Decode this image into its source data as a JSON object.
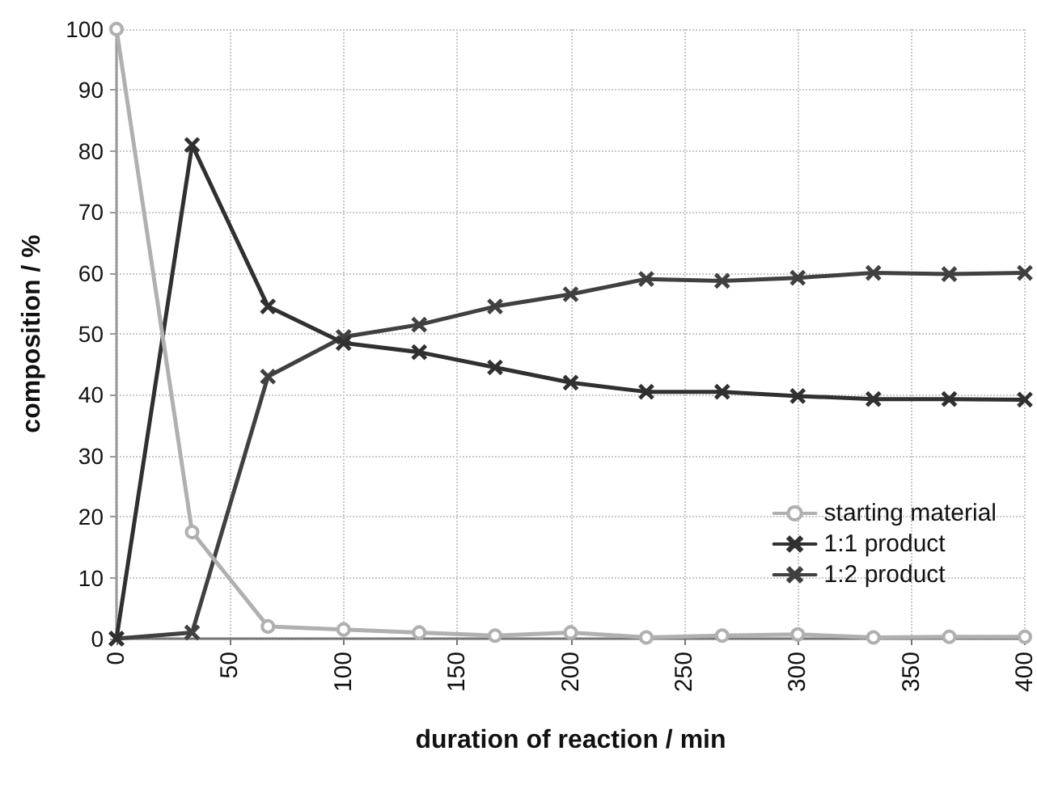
{
  "chart_data": {
    "type": "line",
    "xlabel": "duration of reaction / min",
    "ylabel": "composition / %",
    "x": [
      0,
      33.3,
      66.7,
      100,
      133.3,
      166.7,
      200,
      233.3,
      266.7,
      300,
      333.3,
      366.7,
      400
    ],
    "series": [
      {
        "name": "starting material",
        "color": "#b0b0b0",
        "marker": "circle",
        "values": [
          100,
          17.5,
          2,
          1.5,
          1,
          0.5,
          1,
          0.2,
          0.5,
          0.7,
          0.2,
          0.3,
          0.3
        ]
      },
      {
        "name": "1:1 product",
        "color": "#303030",
        "marker": "cross",
        "values": [
          0,
          81,
          54.5,
          48.5,
          47,
          44.5,
          42,
          40.5,
          40.5,
          39.8,
          39.3,
          39.3,
          39.2
        ]
      },
      {
        "name": "1:2 product",
        "color": "#404040",
        "marker": "cross",
        "values": [
          0,
          1,
          43,
          49.5,
          51.5,
          54.5,
          56.5,
          59,
          58.7,
          59.2,
          60,
          59.8,
          60
        ]
      }
    ],
    "xlim": [
      0,
      400
    ],
    "xticks": [
      0,
      50,
      100,
      150,
      200,
      250,
      300,
      350,
      400
    ],
    "ylim": [
      0,
      100
    ],
    "yticks": [
      0,
      10,
      20,
      30,
      40,
      50,
      60,
      70,
      80,
      90,
      100
    ],
    "grid": true,
    "legend": "bottom right",
    "line_style": "solid"
  }
}
